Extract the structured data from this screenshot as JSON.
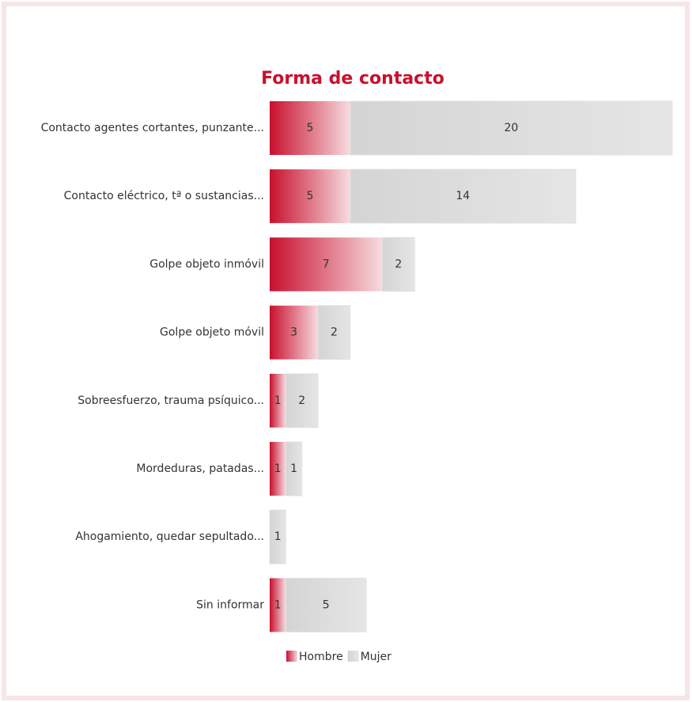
{
  "chart_data": {
    "type": "stacked_barh",
    "title": "Forma de contacto",
    "categories": [
      "Contacto agentes cortantes, punzante...",
      "Contacto eléctrico, tª o sustancias...",
      "Golpe objeto inmóvil",
      "Golpe objeto móvil",
      "Sobreesfuerzo, trauma psíquico...",
      "Mordeduras, patadas...",
      "Ahogamiento, quedar sepultado...",
      "Sin informar"
    ],
    "series": [
      {
        "name": "Hombre",
        "color": "#c8102e",
        "values": [
          5,
          5,
          7,
          3,
          1,
          1,
          0,
          1
        ]
      },
      {
        "name": "Mujer",
        "color": "#d4d4d4",
        "values": [
          20,
          14,
          2,
          2,
          2,
          1,
          1,
          5
        ]
      }
    ],
    "legend": "bottom"
  }
}
